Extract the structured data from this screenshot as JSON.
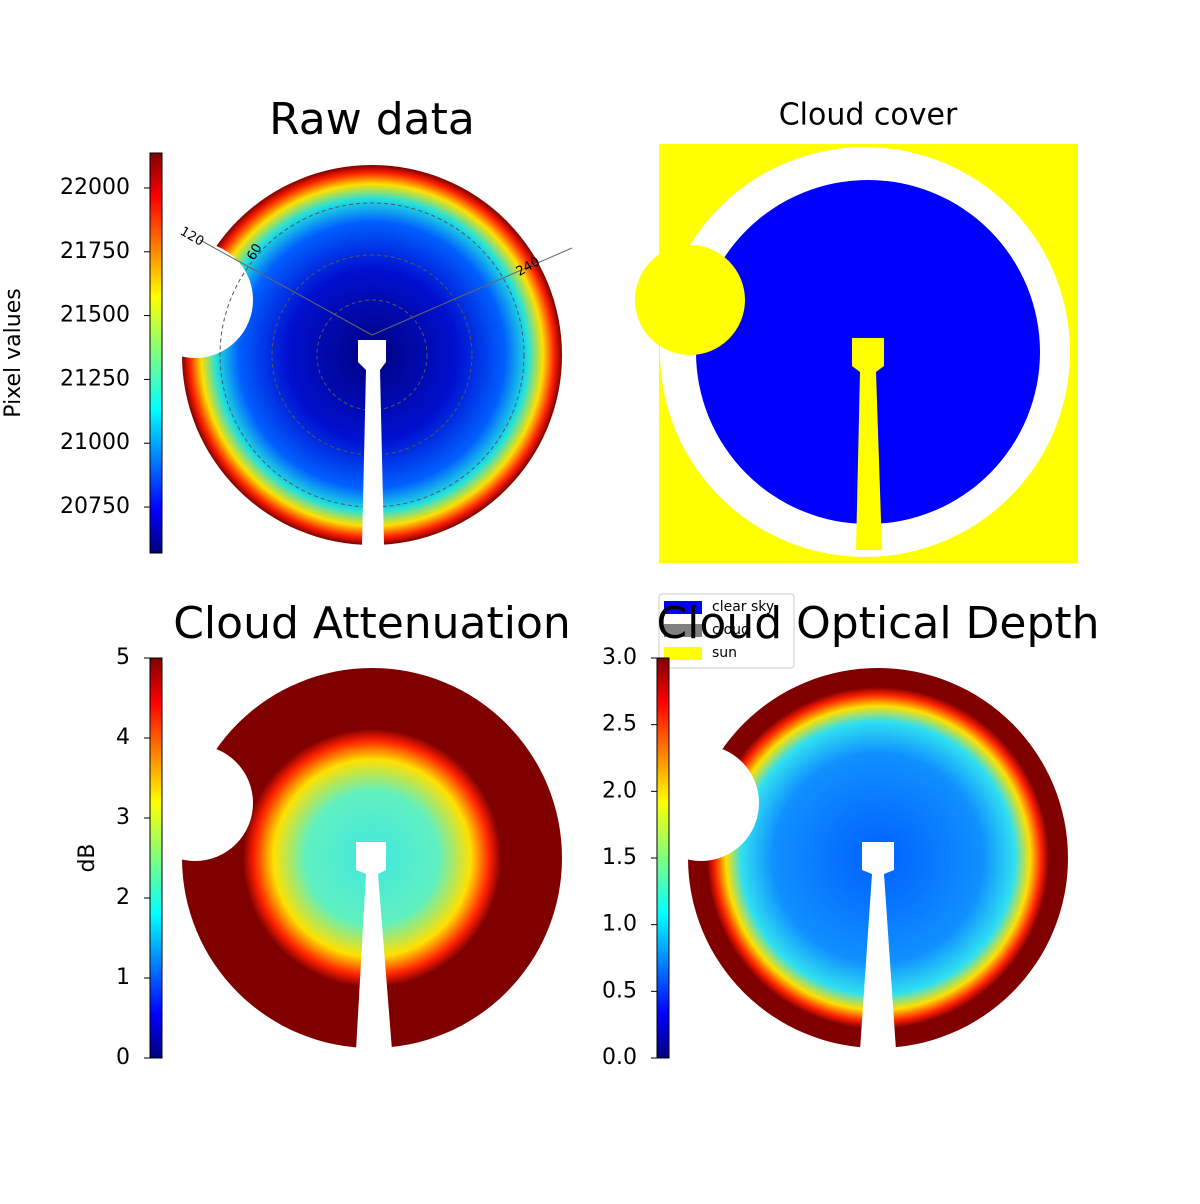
{
  "chart_data": [
    {
      "type": "image",
      "title": "Raw data",
      "colorbar_label": "Pixel values",
      "clim": [
        20570,
        22137
      ],
      "cticks": [
        20750,
        21000,
        21250,
        21500,
        21750,
        22000
      ],
      "polar_labels": [
        "120",
        "60",
        "240"
      ]
    },
    {
      "type": "classmap",
      "title": "Cloud cover",
      "legend": [
        {
          "name": "clear sky",
          "color": "#0000ff"
        },
        {
          "name": "cloud",
          "color": "#808080"
        },
        {
          "name": "sun",
          "color": "#ffff00"
        }
      ]
    },
    {
      "type": "image",
      "title": "Cloud Attenuation",
      "colorbar_label": "dB",
      "clim": [
        0,
        5
      ],
      "cticks": [
        0,
        1,
        2,
        3,
        4,
        5
      ]
    },
    {
      "type": "image",
      "title": "Cloud Optical Depth",
      "clim": [
        0,
        3
      ],
      "cticks": [
        {
          "value": 0,
          "label": "0.0"
        },
        0.5,
        {
          "value": 1,
          "label": "1.0"
        },
        1.5,
        {
          "value": 2,
          "label": "2.0"
        },
        2.5,
        {
          "value": 3,
          "label": "3.0"
        }
      ]
    }
  ]
}
